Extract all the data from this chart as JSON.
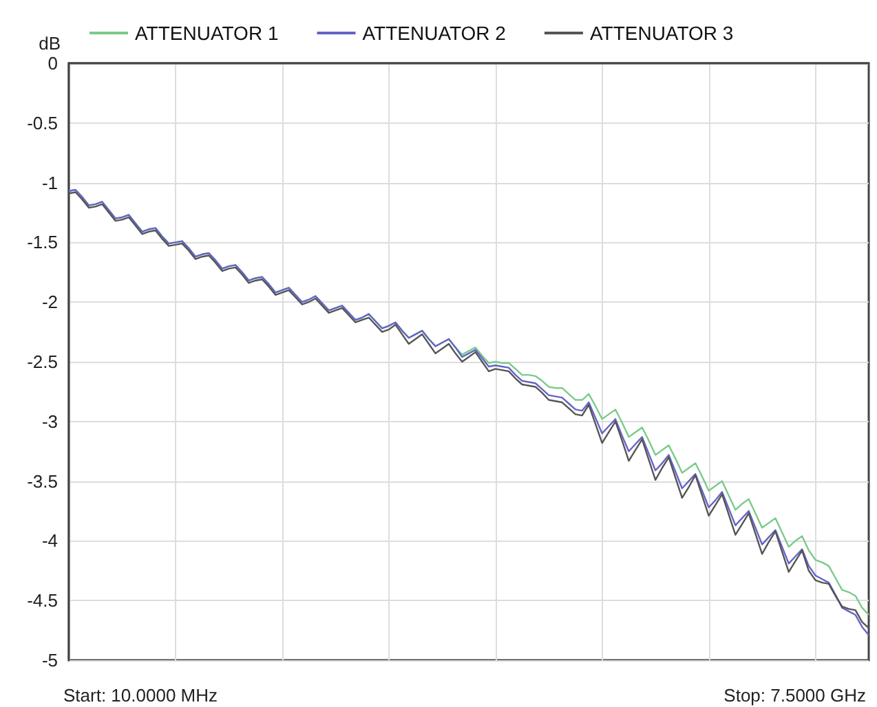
{
  "chart_data": {
    "type": "line",
    "ylabel": "dB",
    "ylim": [
      -5,
      0
    ],
    "yticks": [
      0,
      -0.5,
      -1,
      -1.5,
      -2,
      -2.5,
      -3,
      -3.5,
      -4,
      -4.5,
      -5
    ],
    "grid": true,
    "legend": "top left",
    "marker": "none",
    "line_style": "solid",
    "annotations": [
      "Start: 10.0000 MHz",
      "Stop: 7.5000 GHz"
    ],
    "categories": [
      null,
      null,
      null,
      null,
      null,
      null,
      null,
      null,
      null,
      null,
      null,
      null,
      null,
      null,
      null,
      null,
      null,
      null,
      null,
      null,
      null,
      null,
      null,
      null,
      null,
      null,
      null,
      null,
      null,
      null,
      null,
      null,
      null,
      null,
      null,
      null,
      null,
      null,
      null,
      null,
      null,
      null,
      null,
      null,
      null,
      null,
      null,
      null,
      null,
      null,
      null,
      null,
      null,
      null,
      null,
      null,
      null,
      null,
      null,
      null,
      null,
      null,
      null,
      null,
      null,
      null,
      null,
      null,
      null,
      null,
      null,
      null,
      null,
      null,
      null,
      null,
      null,
      null,
      null,
      null,
      null,
      null,
      null,
      null,
      null,
      null,
      null,
      null,
      null,
      null,
      null,
      null,
      null,
      null,
      null,
      null,
      null,
      null,
      null,
      null,
      null,
      null,
      null,
      null,
      null,
      null,
      null,
      null,
      null,
      null,
      null,
      null,
      null,
      null,
      null,
      null,
      null,
      null,
      null,
      null,
      null
    ],
    "series": [
      {
        "name": "ATTENUATOR 1",
        "color": "#7acb8a",
        "values": [
          -1.07,
          -1.06,
          -1.12,
          -1.19,
          -1.18,
          -1.16,
          -1.23,
          -1.3,
          -1.29,
          -1.27,
          -1.34,
          -1.41,
          -1.39,
          -1.38,
          -1.45,
          -1.51,
          -1.5,
          -1.49,
          -1.55,
          -1.62,
          -1.6,
          -1.59,
          -1.65,
          -1.72,
          -1.7,
          -1.69,
          -1.75,
          -1.82,
          -1.8,
          -1.79,
          -1.85,
          -1.92,
          -1.9,
          -1.88,
          -1.94,
          -2.0,
          -1.98,
          -1.95,
          -2.01,
          -2.07,
          -2.05,
          -2.03,
          -2.09,
          -2.15,
          -2.13,
          -2.1,
          -2.16,
          -2.22,
          -2.2,
          -2.17,
          -2.24,
          -2.3,
          -2.27,
          -2.24,
          -2.31,
          -2.37,
          -2.34,
          -2.31,
          -2.38,
          -2.44,
          -2.41,
          -2.38,
          -2.45,
          -2.51,
          -2.5,
          -2.51,
          -2.51,
          -2.56,
          -2.61,
          -2.61,
          -2.62,
          -2.66,
          -2.71,
          -2.72,
          -2.72,
          -2.77,
          -2.82,
          -2.82,
          -2.77,
          -2.87,
          -2.98,
          -2.94,
          -2.9,
          -3.01,
          -3.13,
          -3.09,
          -3.05,
          -3.16,
          -3.28,
          -3.24,
          -3.2,
          -3.31,
          -3.43,
          -3.39,
          -3.35,
          -3.46,
          -3.58,
          -3.54,
          -3.5,
          -3.62,
          -3.74,
          -3.69,
          -3.65,
          -3.77,
          -3.89,
          -3.85,
          -3.81,
          -3.93,
          -4.05,
          -4.0,
          -3.96,
          -4.08,
          -4.16,
          -4.18,
          -4.21,
          -4.31,
          -4.41,
          -4.43,
          -4.46,
          -4.56,
          -4.62
        ]
      },
      {
        "name": "ATTENUATOR 2",
        "color": "#6464c8",
        "values": [
          -1.07,
          -1.06,
          -1.12,
          -1.19,
          -1.18,
          -1.16,
          -1.23,
          -1.3,
          -1.29,
          -1.27,
          -1.34,
          -1.41,
          -1.39,
          -1.38,
          -1.45,
          -1.51,
          -1.5,
          -1.49,
          -1.55,
          -1.62,
          -1.6,
          -1.59,
          -1.65,
          -1.72,
          -1.7,
          -1.69,
          -1.75,
          -1.82,
          -1.8,
          -1.79,
          -1.85,
          -1.92,
          -1.9,
          -1.88,
          -1.94,
          -2.0,
          -1.98,
          -1.95,
          -2.01,
          -2.07,
          -2.05,
          -2.03,
          -2.09,
          -2.15,
          -2.13,
          -2.1,
          -2.16,
          -2.22,
          -2.2,
          -2.17,
          -2.24,
          -2.3,
          -2.27,
          -2.24,
          -2.31,
          -2.37,
          -2.34,
          -2.31,
          -2.38,
          -2.46,
          -2.43,
          -2.4,
          -2.47,
          -2.54,
          -2.53,
          -2.54,
          -2.55,
          -2.61,
          -2.66,
          -2.67,
          -2.68,
          -2.73,
          -2.78,
          -2.79,
          -2.8,
          -2.85,
          -2.9,
          -2.91,
          -2.84,
          -2.97,
          -3.1,
          -3.04,
          -2.98,
          -3.12,
          -3.25,
          -3.19,
          -3.13,
          -3.27,
          -3.41,
          -3.35,
          -3.28,
          -3.42,
          -3.56,
          -3.5,
          -3.44,
          -3.58,
          -3.72,
          -3.66,
          -3.59,
          -3.73,
          -3.87,
          -3.81,
          -3.75,
          -3.89,
          -4.03,
          -3.97,
          -3.91,
          -4.05,
          -4.19,
          -4.13,
          -4.07,
          -4.21,
          -4.29,
          -4.32,
          -4.35,
          -4.45,
          -4.56,
          -4.59,
          -4.62,
          -4.72,
          -4.79
        ]
      },
      {
        "name": "ATTENUATOR 3",
        "color": "#555555",
        "values": [
          -1.09,
          -1.08,
          -1.14,
          -1.21,
          -1.2,
          -1.18,
          -1.25,
          -1.32,
          -1.31,
          -1.29,
          -1.36,
          -1.43,
          -1.41,
          -1.4,
          -1.47,
          -1.53,
          -1.52,
          -1.51,
          -1.57,
          -1.64,
          -1.62,
          -1.61,
          -1.67,
          -1.74,
          -1.72,
          -1.71,
          -1.77,
          -1.84,
          -1.82,
          -1.81,
          -1.87,
          -1.94,
          -1.92,
          -1.9,
          -1.96,
          -2.02,
          -2.0,
          -1.97,
          -2.03,
          -2.09,
          -2.07,
          -2.05,
          -2.11,
          -2.17,
          -2.15,
          -2.13,
          -2.19,
          -2.25,
          -2.23,
          -2.19,
          -2.27,
          -2.35,
          -2.31,
          -2.27,
          -2.35,
          -2.43,
          -2.39,
          -2.35,
          -2.43,
          -2.5,
          -2.46,
          -2.42,
          -2.5,
          -2.58,
          -2.56,
          -2.57,
          -2.58,
          -2.64,
          -2.69,
          -2.7,
          -2.71,
          -2.76,
          -2.82,
          -2.83,
          -2.84,
          -2.89,
          -2.94,
          -2.95,
          -2.86,
          -3.02,
          -3.18,
          -3.09,
          -3.0,
          -3.16,
          -3.33,
          -3.24,
          -3.15,
          -3.32,
          -3.49,
          -3.39,
          -3.3,
          -3.47,
          -3.64,
          -3.55,
          -3.45,
          -3.62,
          -3.79,
          -3.7,
          -3.61,
          -3.78,
          -3.95,
          -3.86,
          -3.77,
          -3.94,
          -4.11,
          -4.01,
          -3.92,
          -4.09,
          -4.26,
          -4.17,
          -4.08,
          -4.25,
          -4.33,
          -4.35,
          -4.36,
          -4.46,
          -4.55,
          -4.57,
          -4.58,
          -4.68,
          -4.73
        ]
      }
    ]
  }
}
